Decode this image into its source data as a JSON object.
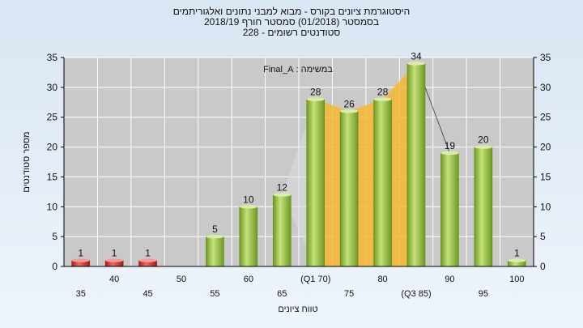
{
  "chart_data": {
    "type": "bar",
    "title_lines": [
      "היסטוגרמת ציונים בקורס - מבוא למבני נתונים ואלגוריתמים",
      "בסמסטר  (01/2018)  סמסטר חורף 2018/19",
      "סטודנטים רשומים - 228"
    ],
    "annotation": "במשימה : Final_A",
    "xlabel": "טווח ציונים",
    "ylabel": "מספר סטודנטים",
    "categories": [
      "35",
      "40",
      "45",
      "50",
      "55",
      "60",
      "65",
      "(Q1 70)",
      "75",
      "80",
      "(Q3 85)",
      "90",
      "95",
      "100"
    ],
    "values": [
      1,
      1,
      1,
      0,
      5,
      10,
      12,
      28,
      26,
      28,
      34,
      19,
      20,
      1
    ],
    "data_labels": [
      "1",
      "1",
      "1",
      "",
      "5",
      "10",
      "12",
      "28",
      "26",
      "28",
      "34",
      "19",
      "20",
      "1"
    ],
    "ylim": [
      0,
      35
    ],
    "yticks": [
      0,
      5,
      10,
      15,
      20,
      25,
      30,
      35
    ],
    "grid": true,
    "colors": {
      "fail_bar": "#d9302c",
      "pass_bar": "#8dbb3c",
      "iqr_area": "#f7b731",
      "plot_bg": "#c9c9c9",
      "grid": "#ffffff"
    },
    "fail_below": 55,
    "iqr_range": [
      "(Q1 70)",
      "(Q3 85)"
    ]
  }
}
